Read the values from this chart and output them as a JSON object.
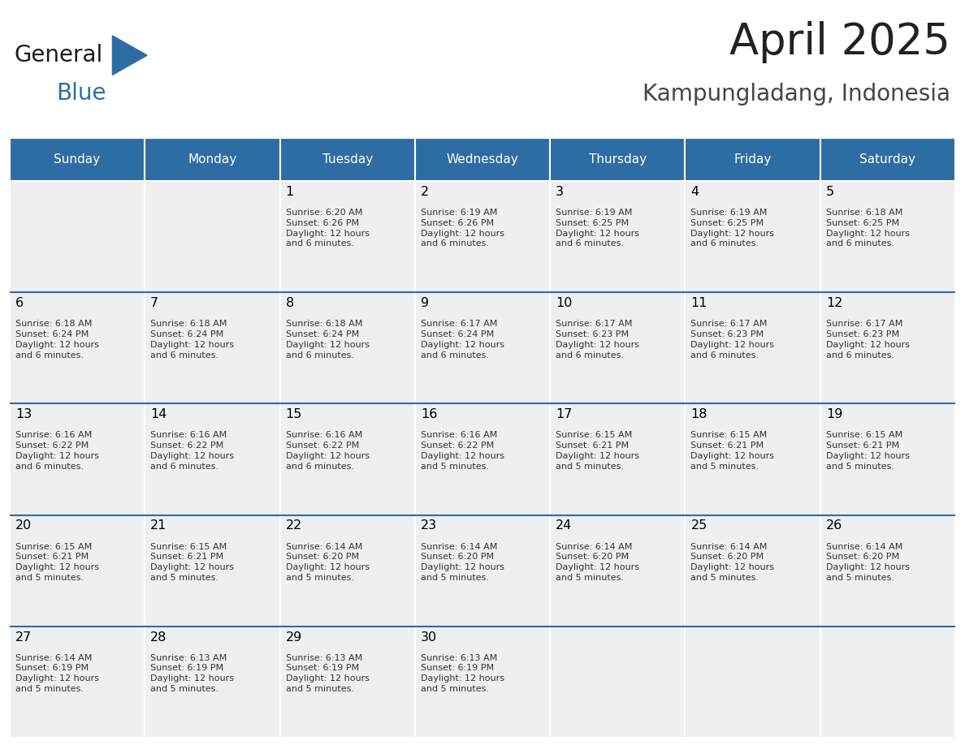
{
  "title": "April 2025",
  "subtitle": "Kampungladang, Indonesia",
  "header_bg_color": "#2E6DA4",
  "header_text_color": "#FFFFFF",
  "day_names": [
    "Sunday",
    "Monday",
    "Tuesday",
    "Wednesday",
    "Thursday",
    "Friday",
    "Saturday"
  ],
  "cell_bg_color": "#EFEFEF",
  "cell_alt_bg_color": "#FFFFFF",
  "cell_border_color": "#FFFFFF",
  "row_sep_color": "#2E6DA4",
  "day_num_color": "#000000",
  "sunrise_color": "#333333",
  "title_color": "#222222",
  "subtitle_color": "#444444",
  "logo_text_general": "General",
  "logo_text_blue": "Blue",
  "logo_color_general": "#1a1a1a",
  "logo_color_blue": "#2E6DA4",
  "weeks": [
    {
      "days": [
        {
          "day": null,
          "info": null
        },
        {
          "day": null,
          "info": null
        },
        {
          "day": 1,
          "info": "Sunrise: 6:20 AM\nSunset: 6:26 PM\nDaylight: 12 hours\nand 6 minutes."
        },
        {
          "day": 2,
          "info": "Sunrise: 6:19 AM\nSunset: 6:26 PM\nDaylight: 12 hours\nand 6 minutes."
        },
        {
          "day": 3,
          "info": "Sunrise: 6:19 AM\nSunset: 6:25 PM\nDaylight: 12 hours\nand 6 minutes."
        },
        {
          "day": 4,
          "info": "Sunrise: 6:19 AM\nSunset: 6:25 PM\nDaylight: 12 hours\nand 6 minutes."
        },
        {
          "day": 5,
          "info": "Sunrise: 6:18 AM\nSunset: 6:25 PM\nDaylight: 12 hours\nand 6 minutes."
        }
      ]
    },
    {
      "days": [
        {
          "day": 6,
          "info": "Sunrise: 6:18 AM\nSunset: 6:24 PM\nDaylight: 12 hours\nand 6 minutes."
        },
        {
          "day": 7,
          "info": "Sunrise: 6:18 AM\nSunset: 6:24 PM\nDaylight: 12 hours\nand 6 minutes."
        },
        {
          "day": 8,
          "info": "Sunrise: 6:18 AM\nSunset: 6:24 PM\nDaylight: 12 hours\nand 6 minutes."
        },
        {
          "day": 9,
          "info": "Sunrise: 6:17 AM\nSunset: 6:24 PM\nDaylight: 12 hours\nand 6 minutes."
        },
        {
          "day": 10,
          "info": "Sunrise: 6:17 AM\nSunset: 6:23 PM\nDaylight: 12 hours\nand 6 minutes."
        },
        {
          "day": 11,
          "info": "Sunrise: 6:17 AM\nSunset: 6:23 PM\nDaylight: 12 hours\nand 6 minutes."
        },
        {
          "day": 12,
          "info": "Sunrise: 6:17 AM\nSunset: 6:23 PM\nDaylight: 12 hours\nand 6 minutes."
        }
      ]
    },
    {
      "days": [
        {
          "day": 13,
          "info": "Sunrise: 6:16 AM\nSunset: 6:22 PM\nDaylight: 12 hours\nand 6 minutes."
        },
        {
          "day": 14,
          "info": "Sunrise: 6:16 AM\nSunset: 6:22 PM\nDaylight: 12 hours\nand 6 minutes."
        },
        {
          "day": 15,
          "info": "Sunrise: 6:16 AM\nSunset: 6:22 PM\nDaylight: 12 hours\nand 6 minutes."
        },
        {
          "day": 16,
          "info": "Sunrise: 6:16 AM\nSunset: 6:22 PM\nDaylight: 12 hours\nand 5 minutes."
        },
        {
          "day": 17,
          "info": "Sunrise: 6:15 AM\nSunset: 6:21 PM\nDaylight: 12 hours\nand 5 minutes."
        },
        {
          "day": 18,
          "info": "Sunrise: 6:15 AM\nSunset: 6:21 PM\nDaylight: 12 hours\nand 5 minutes."
        },
        {
          "day": 19,
          "info": "Sunrise: 6:15 AM\nSunset: 6:21 PM\nDaylight: 12 hours\nand 5 minutes."
        }
      ]
    },
    {
      "days": [
        {
          "day": 20,
          "info": "Sunrise: 6:15 AM\nSunset: 6:21 PM\nDaylight: 12 hours\nand 5 minutes."
        },
        {
          "day": 21,
          "info": "Sunrise: 6:15 AM\nSunset: 6:21 PM\nDaylight: 12 hours\nand 5 minutes."
        },
        {
          "day": 22,
          "info": "Sunrise: 6:14 AM\nSunset: 6:20 PM\nDaylight: 12 hours\nand 5 minutes."
        },
        {
          "day": 23,
          "info": "Sunrise: 6:14 AM\nSunset: 6:20 PM\nDaylight: 12 hours\nand 5 minutes."
        },
        {
          "day": 24,
          "info": "Sunrise: 6:14 AM\nSunset: 6:20 PM\nDaylight: 12 hours\nand 5 minutes."
        },
        {
          "day": 25,
          "info": "Sunrise: 6:14 AM\nSunset: 6:20 PM\nDaylight: 12 hours\nand 5 minutes."
        },
        {
          "day": 26,
          "info": "Sunrise: 6:14 AM\nSunset: 6:20 PM\nDaylight: 12 hours\nand 5 minutes."
        }
      ]
    },
    {
      "days": [
        {
          "day": 27,
          "info": "Sunrise: 6:14 AM\nSunset: 6:19 PM\nDaylight: 12 hours\nand 5 minutes."
        },
        {
          "day": 28,
          "info": "Sunrise: 6:13 AM\nSunset: 6:19 PM\nDaylight: 12 hours\nand 5 minutes."
        },
        {
          "day": 29,
          "info": "Sunrise: 6:13 AM\nSunset: 6:19 PM\nDaylight: 12 hours\nand 5 minutes."
        },
        {
          "day": 30,
          "info": "Sunrise: 6:13 AM\nSunset: 6:19 PM\nDaylight: 12 hours\nand 5 minutes."
        },
        {
          "day": null,
          "info": null
        },
        {
          "day": null,
          "info": null
        },
        {
          "day": null,
          "info": null
        }
      ]
    }
  ]
}
